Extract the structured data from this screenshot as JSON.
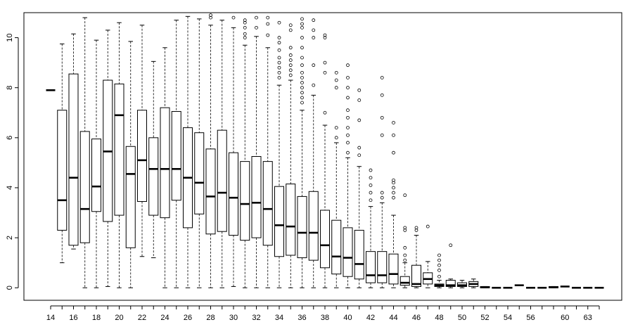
{
  "chart_data": {
    "type": "boxplot",
    "title": "",
    "xlabel": "",
    "ylabel": "",
    "ylim": [
      -0.5,
      11
    ],
    "grid": false,
    "legend": "none",
    "y_ticks": [
      "0",
      "2",
      "4",
      "6",
      "8",
      "10"
    ],
    "y_tick_values": [
      0,
      2,
      4,
      6,
      8,
      10
    ],
    "colors": {
      "axis": "#000000",
      "box": "#000000",
      "median": "#000000",
      "background": "#ffffff"
    },
    "boxes": [
      {
        "category": "14",
        "label": "14",
        "min": 7.9,
        "q1": 7.9,
        "median": 7.9,
        "q3": 7.9,
        "max": 7.9,
        "outliers": []
      },
      {
        "category": "15",
        "label": "",
        "min": 1.0,
        "q1": 2.3,
        "median": 3.5,
        "q3": 7.1,
        "max": 9.75,
        "outliers": []
      },
      {
        "category": "16",
        "label": "16",
        "min": 1.55,
        "q1": 1.7,
        "median": 4.4,
        "q3": 8.55,
        "max": 10.15,
        "outliers": []
      },
      {
        "category": "17",
        "label": "",
        "min": 0.0,
        "q1": 1.8,
        "median": 3.15,
        "q3": 6.25,
        "max": 10.8,
        "outliers": []
      },
      {
        "category": "18",
        "label": "18",
        "min": 0.0,
        "q1": 3.05,
        "median": 4.05,
        "q3": 5.95,
        "max": 9.9,
        "outliers": []
      },
      {
        "category": "19",
        "label": "",
        "min": 0.05,
        "q1": 2.65,
        "median": 5.45,
        "q3": 8.3,
        "max": 10.3,
        "outliers": []
      },
      {
        "category": "20",
        "label": "20",
        "min": 0.0,
        "q1": 2.9,
        "median": 6.9,
        "q3": 8.15,
        "max": 10.6,
        "outliers": []
      },
      {
        "category": "21",
        "label": "",
        "min": 0.0,
        "q1": 1.6,
        "median": 4.55,
        "q3": 5.65,
        "max": 9.85,
        "outliers": []
      },
      {
        "category": "22",
        "label": "22",
        "min": 1.25,
        "q1": 3.45,
        "median": 5.1,
        "q3": 7.1,
        "max": 10.5,
        "outliers": []
      },
      {
        "category": "23",
        "label": "",
        "min": 1.2,
        "q1": 2.9,
        "median": 4.75,
        "q3": 6.0,
        "max": 9.05,
        "outliers": []
      },
      {
        "category": "24",
        "label": "24",
        "min": 0.0,
        "q1": 2.8,
        "median": 4.75,
        "q3": 7.2,
        "max": 9.6,
        "outliers": []
      },
      {
        "category": "25",
        "label": "",
        "min": 0.0,
        "q1": 3.5,
        "median": 4.75,
        "q3": 7.05,
        "max": 10.7,
        "outliers": []
      },
      {
        "category": "26",
        "label": "26",
        "min": 0.0,
        "q1": 2.4,
        "median": 4.4,
        "q3": 6.4,
        "max": 10.85,
        "outliers": []
      },
      {
        "category": "27",
        "label": "",
        "min": 0.0,
        "q1": 2.95,
        "median": 4.2,
        "q3": 6.2,
        "max": 10.75,
        "outliers": []
      },
      {
        "category": "28",
        "label": "28",
        "min": 0.0,
        "q1": 2.15,
        "median": 3.65,
        "q3": 5.55,
        "max": 10.5,
        "outliers": [
          10.8,
          10.9
        ]
      },
      {
        "category": "29",
        "label": "",
        "min": 0.0,
        "q1": 2.25,
        "median": 3.8,
        "q3": 6.3,
        "max": 10.7,
        "outliers": []
      },
      {
        "category": "30",
        "label": "30",
        "min": 0.05,
        "q1": 2.1,
        "median": 3.6,
        "q3": 5.4,
        "max": 10.4,
        "outliers": [
          10.8
        ]
      },
      {
        "category": "31",
        "label": "",
        "min": 0.0,
        "q1": 1.9,
        "median": 3.35,
        "q3": 5.05,
        "max": 9.7,
        "outliers": [
          10.0,
          10.15,
          10.4,
          10.6,
          10.7
        ]
      },
      {
        "category": "32",
        "label": "32",
        "min": 0.0,
        "q1": 2.0,
        "median": 3.4,
        "q3": 5.25,
        "max": 10.05,
        "outliers": [
          10.4,
          10.8
        ]
      },
      {
        "category": "33",
        "label": "",
        "min": 0.0,
        "q1": 1.7,
        "median": 3.15,
        "q3": 5.05,
        "max": 9.6,
        "outliers": [
          10.1,
          10.55,
          10.8
        ]
      },
      {
        "category": "34",
        "label": "34",
        "min": 0.0,
        "q1": 1.25,
        "median": 2.5,
        "q3": 4.05,
        "max": 8.1,
        "outliers": [
          8.4,
          8.6,
          8.8,
          9.0,
          9.2,
          9.5,
          9.8,
          10.0,
          10.6
        ]
      },
      {
        "category": "35",
        "label": "",
        "min": 0.0,
        "q1": 1.3,
        "median": 2.45,
        "q3": 4.15,
        "max": 8.3,
        "outliers": [
          8.5,
          8.7,
          8.9,
          9.1,
          9.3,
          9.6,
          10.3,
          10.5
        ]
      },
      {
        "category": "36",
        "label": "36",
        "min": 0.0,
        "q1": 1.2,
        "median": 2.2,
        "q3": 3.65,
        "max": 7.1,
        "outliers": [
          7.4,
          7.6,
          7.8,
          8.0,
          8.2,
          8.4,
          8.6,
          8.9,
          9.2,
          9.6,
          10.0,
          10.4,
          10.55,
          10.75
        ]
      },
      {
        "category": "37",
        "label": "",
        "min": 0.0,
        "q1": 1.1,
        "median": 2.2,
        "q3": 3.85,
        "max": 7.7,
        "outliers": [
          8.1,
          8.9,
          10.0,
          10.3,
          10.7
        ]
      },
      {
        "category": "38",
        "label": "38",
        "min": 0.0,
        "q1": 0.8,
        "median": 1.7,
        "q3": 3.1,
        "max": 6.5,
        "outliers": [
          7.0,
          8.6,
          9.0,
          10.0,
          10.1
        ]
      },
      {
        "category": "39",
        "label": "",
        "min": 0.0,
        "q1": 0.55,
        "median": 1.25,
        "q3": 2.7,
        "max": 5.8,
        "outliers": [
          6.0,
          6.4,
          8.0,
          8.3,
          8.6
        ]
      },
      {
        "category": "40",
        "label": "40",
        "min": 0.0,
        "q1": 0.45,
        "median": 1.2,
        "q3": 2.4,
        "max": 5.2,
        "outliers": [
          5.4,
          5.8,
          6.1,
          6.4,
          6.8,
          7.1,
          7.6,
          8.0,
          8.4,
          8.9
        ]
      },
      {
        "category": "41",
        "label": "",
        "min": 0.0,
        "q1": 0.35,
        "median": 0.95,
        "q3": 2.3,
        "max": 4.85,
        "outliers": [
          5.3,
          5.6,
          6.7,
          7.5,
          7.9
        ]
      },
      {
        "category": "42",
        "label": "42",
        "min": 0.0,
        "q1": 0.2,
        "median": 0.5,
        "q3": 1.45,
        "max": 3.25,
        "outliers": [
          3.5,
          3.8,
          4.1,
          4.4,
          4.7
        ]
      },
      {
        "category": "43",
        "label": "",
        "min": 0.0,
        "q1": 0.2,
        "median": 0.5,
        "q3": 1.45,
        "max": 3.4,
        "outliers": [
          3.6,
          3.8,
          6.1,
          6.8,
          7.7,
          8.4
        ]
      },
      {
        "category": "44",
        "label": "44",
        "min": 0.0,
        "q1": 0.15,
        "median": 0.55,
        "q3": 1.35,
        "max": 2.9,
        "outliers": [
          3.6,
          3.8,
          4.0,
          4.2,
          4.3,
          5.4,
          6.1,
          6.6
        ]
      },
      {
        "category": "45",
        "label": "",
        "min": 0.0,
        "q1": 0.1,
        "median": 0.2,
        "q3": 0.45,
        "max": 1.0,
        "outliers": [
          1.1,
          1.3,
          1.6,
          2.3,
          2.4,
          3.7
        ]
      },
      {
        "category": "46",
        "label": "46",
        "min": 0.0,
        "q1": 0.05,
        "median": 0.15,
        "q3": 0.9,
        "max": 2.1,
        "outliers": [
          2.3,
          2.4
        ]
      },
      {
        "category": "47",
        "label": "",
        "min": 0.0,
        "q1": 0.15,
        "median": 0.35,
        "q3": 0.6,
        "max": 1.05,
        "outliers": [
          2.45
        ]
      },
      {
        "category": "48",
        "label": "48",
        "min": 0.0,
        "q1": 0.05,
        "median": 0.1,
        "q3": 0.15,
        "max": 0.3,
        "outliers": [
          0.45,
          0.7,
          0.9,
          1.1,
          1.3
        ]
      },
      {
        "category": "49",
        "label": "",
        "min": 0.0,
        "q1": 0.05,
        "median": 0.1,
        "q3": 0.3,
        "max": 0.35,
        "outliers": [
          1.7
        ]
      },
      {
        "category": "50",
        "label": "50",
        "min": 0.0,
        "q1": 0.05,
        "median": 0.1,
        "q3": 0.2,
        "max": 0.3,
        "outliers": []
      },
      {
        "category": "51",
        "label": "",
        "min": 0.0,
        "q1": 0.05,
        "median": 0.15,
        "q3": 0.25,
        "max": 0.35,
        "outliers": []
      },
      {
        "category": "52",
        "label": "52",
        "min": 0.0,
        "q1": 0.0,
        "median": 0.02,
        "q3": 0.05,
        "max": 0.05,
        "outliers": []
      },
      {
        "category": "53",
        "label": "",
        "min": 0.0,
        "q1": 0.0,
        "median": 0.0,
        "q3": 0.0,
        "max": 0.0,
        "outliers": []
      },
      {
        "category": "54",
        "label": "54",
        "min": 0.0,
        "q1": 0.0,
        "median": 0.0,
        "q3": 0.0,
        "max": 0.0,
        "outliers": []
      },
      {
        "category": "55",
        "label": "",
        "min": 0.1,
        "q1": 0.1,
        "median": 0.1,
        "q3": 0.1,
        "max": 0.1,
        "outliers": []
      },
      {
        "category": "56",
        "label": "56",
        "min": 0.0,
        "q1": 0.0,
        "median": 0.0,
        "q3": 0.0,
        "max": 0.0,
        "outliers": []
      },
      {
        "category": "57",
        "label": "",
        "min": 0.0,
        "q1": 0.0,
        "median": 0.0,
        "q3": 0.0,
        "max": 0.0,
        "outliers": []
      },
      {
        "category": "59",
        "label": "",
        "min": 0.0,
        "q1": 0.0,
        "median": 0.02,
        "q3": 0.05,
        "max": 0.05,
        "outliers": []
      },
      {
        "category": "60",
        "label": "60",
        "min": 0.05,
        "q1": 0.05,
        "median": 0.05,
        "q3": 0.05,
        "max": 0.05,
        "outliers": []
      },
      {
        "category": "61",
        "label": "",
        "min": 0.0,
        "q1": 0.0,
        "median": 0.0,
        "q3": 0.0,
        "max": 0.0,
        "outliers": []
      },
      {
        "category": "63",
        "label": "63",
        "min": 0.0,
        "q1": 0.0,
        "median": 0.0,
        "q3": 0.0,
        "max": 0.0,
        "outliers": []
      },
      {
        "category": "64",
        "label": "",
        "min": 0.0,
        "q1": 0.0,
        "median": 0.0,
        "q3": 0.0,
        "max": 0.0,
        "outliers": []
      }
    ]
  }
}
